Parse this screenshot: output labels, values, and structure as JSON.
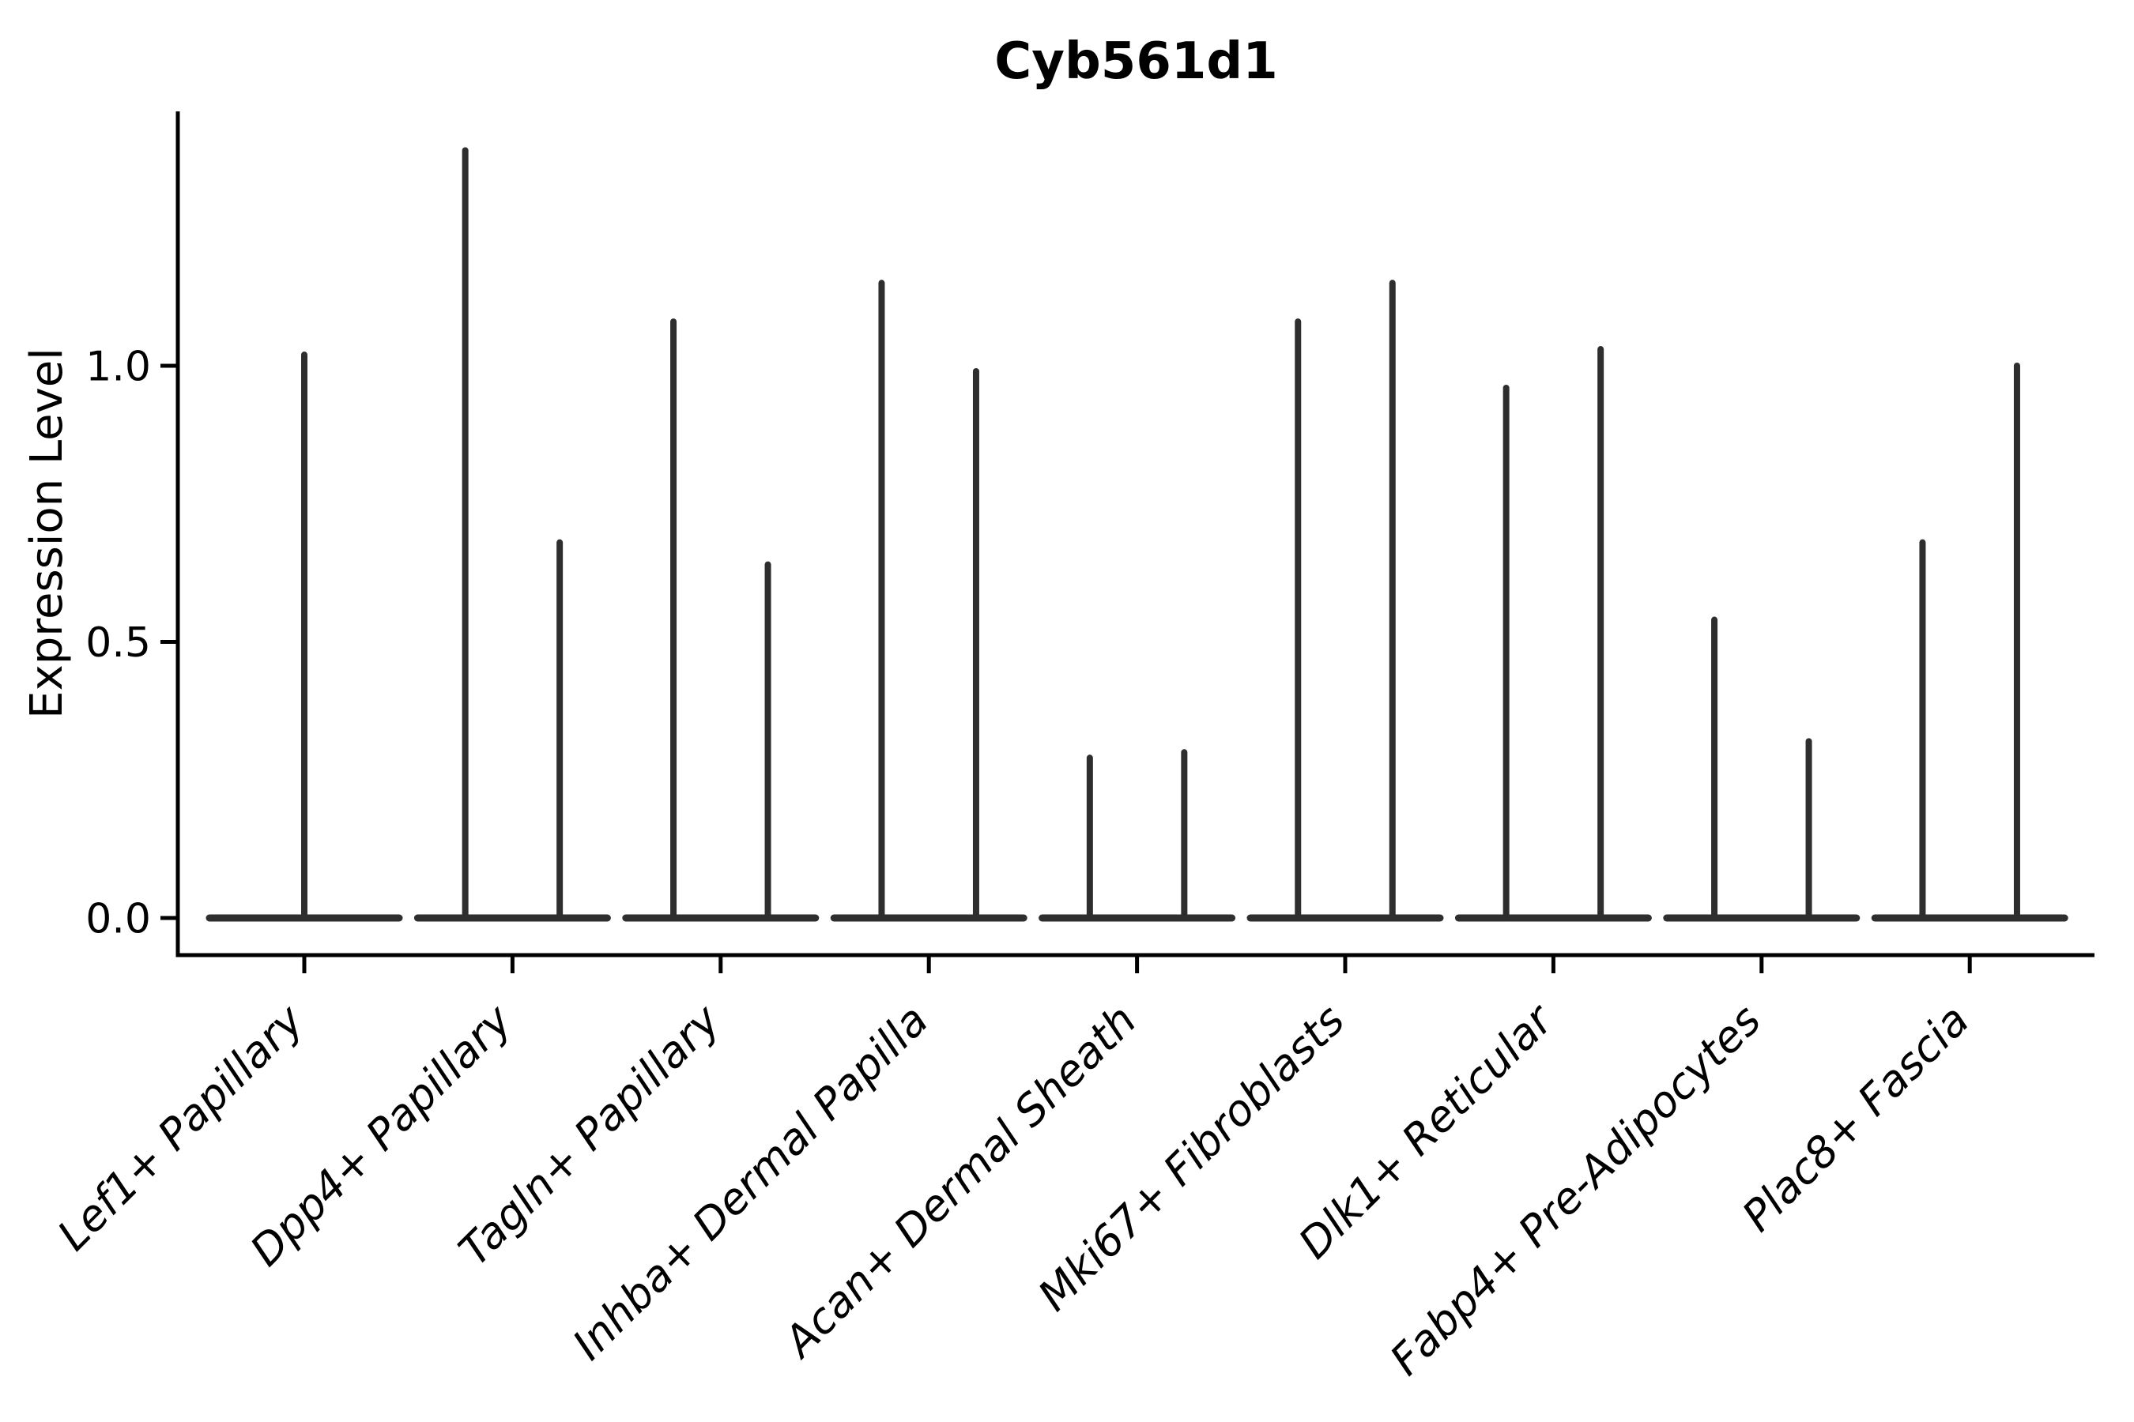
{
  "title": "Cyb561d1",
  "chart_data": {
    "type": "violin",
    "title": "Cyb561d1",
    "ylabel": "Expression Level",
    "xlabel": "",
    "yticks": [
      0.0,
      0.5,
      1.0
    ],
    "ytick_labels": [
      "0.0",
      "0.5",
      "1.0"
    ],
    "ylim": [
      -0.07,
      1.46
    ],
    "grid": false,
    "legend": "none",
    "line_color": "#2e2e2e",
    "axis_color": "#000000",
    "description": "Zero-inflated expression violins: each violin collapses to a flat horizontal line at expression 0 with a thin vertical density spike rising to its maximum expression value.",
    "categories": [
      "Lef1+ Papillary",
      "Dpp4+ Papillary",
      "Tagln+ Papillary",
      "Inhba+ Dermal Papilla",
      "Acan+ Dermal Sheath",
      "Mki67+ Fibroblasts",
      "Dlk1+ Reticular",
      "Fabp4+ Pre-Adipocytes",
      "Plac8+ Fascia"
    ],
    "groups": [
      {
        "category": "Lef1+ Papillary",
        "violins": [
          {
            "side": "center",
            "max_expression": 1.02
          }
        ]
      },
      {
        "category": "Dpp4+ Papillary",
        "violins": [
          {
            "side": "left",
            "max_expression": 1.39
          },
          {
            "side": "right",
            "max_expression": 0.68
          }
        ]
      },
      {
        "category": "Tagln+ Papillary",
        "violins": [
          {
            "side": "left",
            "max_expression": 1.08
          },
          {
            "side": "right",
            "max_expression": 0.64
          }
        ]
      },
      {
        "category": "Inhba+ Dermal Papilla",
        "violins": [
          {
            "side": "left",
            "max_expression": 1.15
          },
          {
            "side": "right",
            "max_expression": 0.99
          }
        ]
      },
      {
        "category": "Acan+ Dermal Sheath",
        "violins": [
          {
            "side": "left",
            "max_expression": 0.29
          },
          {
            "side": "right",
            "max_expression": 0.3
          }
        ]
      },
      {
        "category": "Mki67+ Fibroblasts",
        "violins": [
          {
            "side": "left",
            "max_expression": 1.08
          },
          {
            "side": "right",
            "max_expression": 1.15
          }
        ]
      },
      {
        "category": "Dlk1+ Reticular",
        "violins": [
          {
            "side": "left",
            "max_expression": 0.96
          },
          {
            "side": "right",
            "max_expression": 1.03
          }
        ]
      },
      {
        "category": "Fabp4+ Pre-Adipocytes",
        "violins": [
          {
            "side": "left",
            "max_expression": 0.54
          },
          {
            "side": "right",
            "max_expression": 0.32
          }
        ]
      },
      {
        "category": "Plac8+ Fascia",
        "violins": [
          {
            "side": "left",
            "max_expression": 0.68
          },
          {
            "side": "right",
            "max_expression": 1.0
          }
        ]
      }
    ]
  }
}
